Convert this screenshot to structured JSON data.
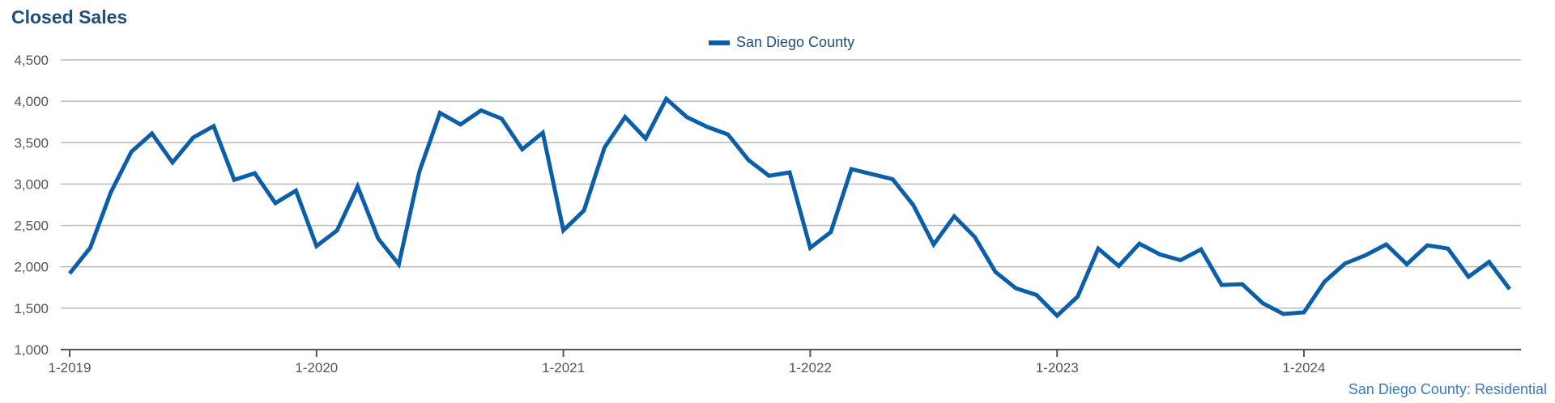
{
  "chart_data": {
    "type": "line",
    "title": "Closed Sales",
    "series": [
      {
        "name": "San Diego County",
        "values": [
          1920,
          2230,
          2900,
          3390,
          3610,
          3260,
          3560,
          3700,
          3050,
          3130,
          2770,
          2920,
          2250,
          2440,
          2970,
          2340,
          2030,
          3150,
          3860,
          3720,
          3890,
          3790,
          3420,
          3620,
          2440,
          2680,
          3440,
          3810,
          3550,
          4030,
          3810,
          3690,
          3600,
          3290,
          3100,
          3140,
          2230,
          2420,
          3180,
          3120,
          3060,
          2750,
          2270,
          2610,
          2360,
          1940,
          1740,
          1660,
          1410,
          1640,
          2220,
          2010,
          2280,
          2150,
          2080,
          2210,
          1780,
          1790,
          1560,
          1430,
          1450,
          1820,
          2040,
          2140,
          2270,
          2030,
          2260,
          2220,
          1880,
          2060,
          1730
        ]
      }
    ],
    "x_start": "1-2019",
    "x_tick_labels": [
      "1-2019",
      "1-2020",
      "1-2021",
      "1-2022",
      "1-2023",
      "1-2024"
    ],
    "y_tick_labels": [
      "1,000",
      "1,500",
      "2,000",
      "2,500",
      "3,000",
      "3,500",
      "4,000",
      "4,500"
    ],
    "ylim": [
      1000,
      4500
    ],
    "grid": true,
    "legend_position": "top-center",
    "line_color": "#0b5ea8",
    "source_note": "San Diego County: Residential"
  }
}
